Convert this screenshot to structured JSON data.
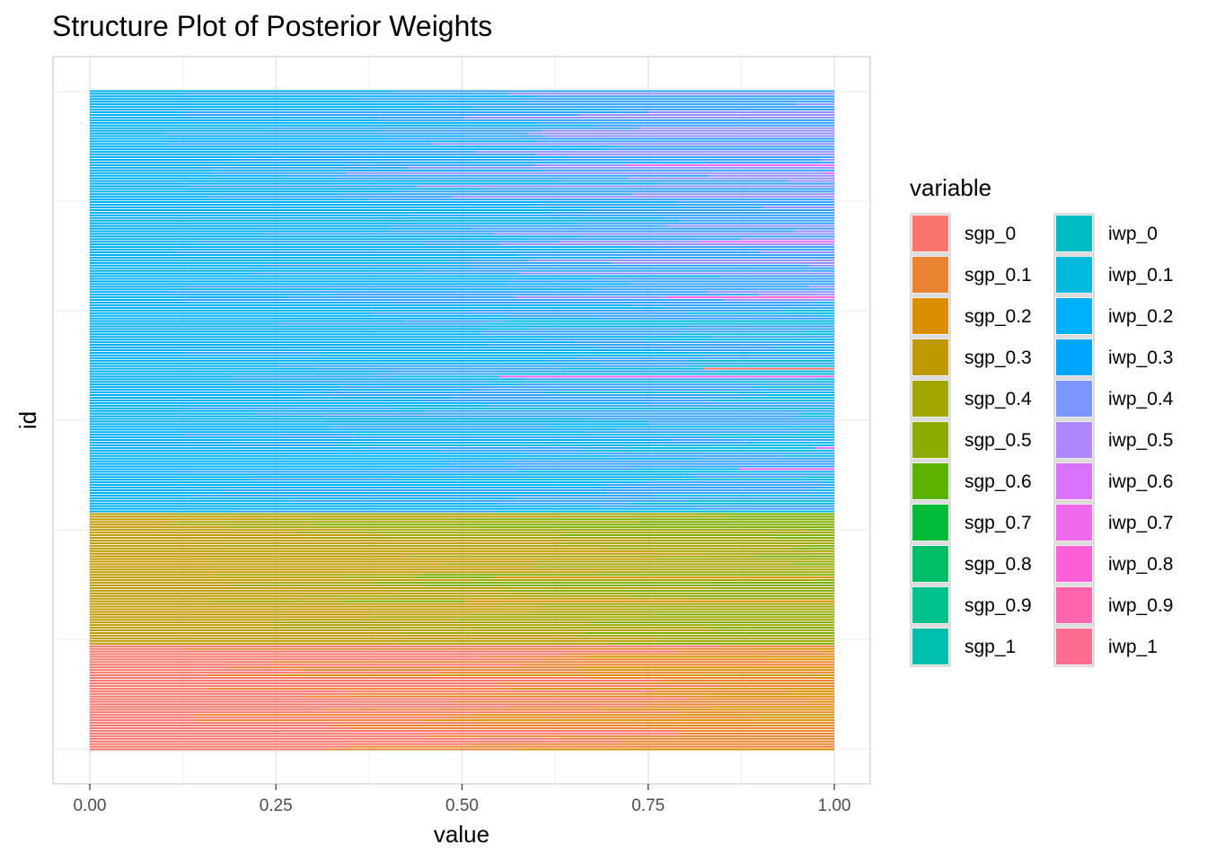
{
  "chart_data": {
    "type": "bar",
    "orientation": "horizontal",
    "stacked": true,
    "title": "Structure Plot of Posterior Weights",
    "xlabel": "value",
    "ylabel": "id",
    "xlim": [
      0,
      1
    ],
    "x_ticks": [
      "0.00",
      "0.25",
      "0.50",
      "0.75",
      "1.00"
    ],
    "x_tick_values": [
      0,
      0.25,
      0.5,
      0.75,
      1
    ],
    "grid": true,
    "legend_title": "variable",
    "legend_position": "right",
    "series": [
      {
        "name": "sgp_0",
        "color": "#F8766D"
      },
      {
        "name": "sgp_0.1",
        "color": "#EA8331"
      },
      {
        "name": "sgp_0.2",
        "color": "#D89000"
      },
      {
        "name": "sgp_0.3",
        "color": "#C09B00"
      },
      {
        "name": "sgp_0.4",
        "color": "#A3A500"
      },
      {
        "name": "sgp_0.5",
        "color": "#7CAE00"
      },
      {
        "name": "sgp_0.6",
        "color": "#39B600"
      },
      {
        "name": "sgp_0.7",
        "color": "#00BB4E"
      },
      {
        "name": "sgp_0.8",
        "color": "#00BF7D"
      },
      {
        "name": "sgp_0.9",
        "color": "#00C1A3"
      },
      {
        "name": "sgp_1",
        "color": "#00BFC4"
      },
      {
        "name": "iwp_0",
        "color": "#00BAE0"
      },
      {
        "name": "iwp_0.1",
        "color": "#00B0F6"
      },
      {
        "name": "iwp_0.2",
        "color": "#35A2FF"
      },
      {
        "name": "iwp_0.3",
        "color": "#9590FF"
      },
      {
        "name": "iwp_0.4",
        "color": "#C77CFF"
      },
      {
        "name": "iwp_0.5",
        "color": "#E76BF3"
      },
      {
        "name": "iwp_0.6",
        "color": "#FA62DB"
      },
      {
        "name": "iwp_0.7",
        "color": "#FF62BC"
      },
      {
        "name": "iwp_0.8",
        "color": "#FF6A98"
      },
      {
        "name": "iwp_0.9",
        "color": "#00C0B8"
      },
      {
        "name": "iwp_1",
        "color": "#F9637A"
      }
    ],
    "legend_left_column": [
      "sgp_0",
      "sgp_0.1",
      "sgp_0.2",
      "sgp_0.3",
      "sgp_0.4",
      "sgp_0.5",
      "sgp_0.6",
      "sgp_0.7",
      "sgp_0.8",
      "sgp_0.9",
      "sgp_1"
    ],
    "legend_right_column": [
      "iwp_0",
      "iwp_0.1",
      "iwp_0.2",
      "iwp_0.3",
      "iwp_0.4",
      "iwp_0.5",
      "iwp_0.6",
      "iwp_0.7",
      "iwp_0.8",
      "iwp_0.9",
      "iwp_1"
    ],
    "legend_colors": {
      "sgp_0": "#F8766D",
      "sgp_0.1": "#EA8331",
      "sgp_0.2": "#D89000",
      "sgp_0.3": "#C09B00",
      "sgp_0.4": "#A3A500",
      "sgp_0.5": "#8BAB00",
      "sgp_0.6": "#5BB300",
      "sgp_0.7": "#00BA38",
      "sgp_0.8": "#00BE67",
      "sgp_0.9": "#00C08B",
      "sgp_1": "#00BFAA",
      "iwp_0": "#00BFC4",
      "iwp_0.1": "#00BADE",
      "iwp_0.2": "#00B0F6",
      "iwp_0.3": "#00A5FF",
      "iwp_0.4": "#7997FF",
      "iwp_0.5": "#AE87FF",
      "iwp_0.6": "#DC71FA",
      "iwp_0.7": "#EF67EB",
      "iwp_0.8": "#FB61D7",
      "iwp_0.9": "#FF65AC",
      "iwp_1": "#FF6C91"
    },
    "row_groups": [
      {
        "rows": 40,
        "dominant": [
          "sgp_0",
          "sgp_0.1",
          "sgp_0.2"
        ],
        "minor": [
          "sgp_0.3"
        ]
      },
      {
        "rows": 50,
        "dominant": [
          "sgp_0.3",
          "sgp_0.4",
          "sgp_0.5"
        ],
        "minor": [
          "sgp_0.2"
        ]
      },
      {
        "rows": 80,
        "dominant": [
          "iwp_0.1",
          "iwp_0.2",
          "iwp_0"
        ],
        "minor": [
          "iwp_0.5",
          "sgp_0"
        ]
      },
      {
        "rows": 80,
        "dominant": [
          "iwp_0.1",
          "iwp_0.2",
          "iwp_0.3"
        ],
        "minor": [
          "iwp_0.5",
          "iwp_0.6"
        ]
      }
    ]
  }
}
